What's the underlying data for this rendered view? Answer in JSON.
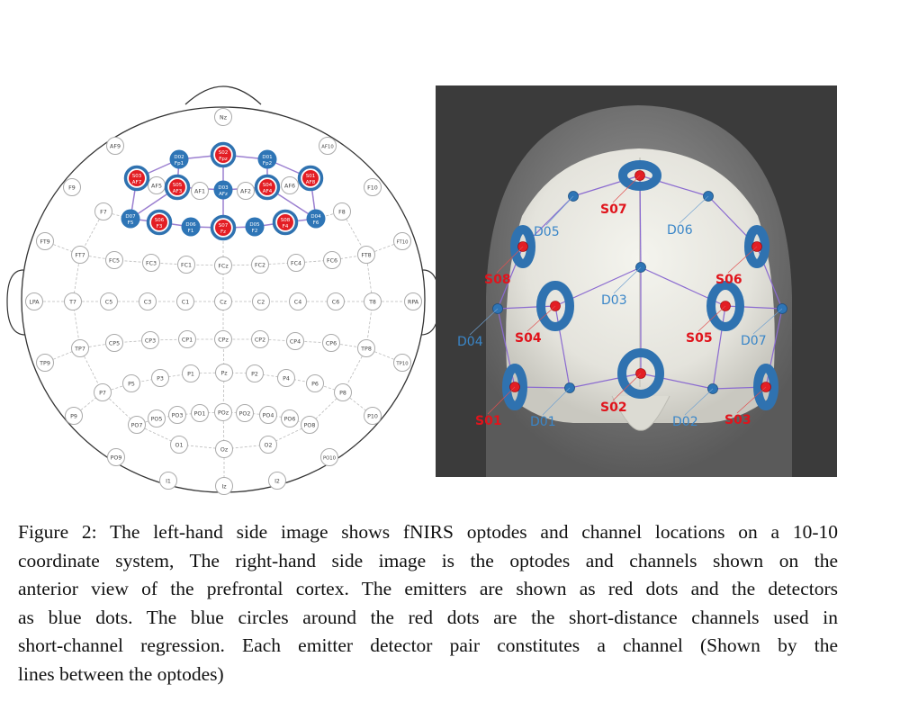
{
  "figure": {
    "left_panel": {
      "electrodes": [
        "Nz",
        "AF9",
        "AF10",
        "AF5",
        "AF1",
        "AF2",
        "AF6",
        "F9",
        "F10",
        "F7",
        "F8",
        "FT9",
        "FT10",
        "FT7",
        "FC5",
        "FC3",
        "FC1",
        "FCz",
        "FC2",
        "FC4",
        "FC6",
        "FT8",
        "LPA",
        "T7",
        "C5",
        "C3",
        "C1",
        "Cz",
        "C2",
        "C4",
        "C6",
        "T8",
        "RPA",
        "TP7",
        "CP5",
        "CP3",
        "CP1",
        "CPz",
        "CP2",
        "CP4",
        "CP6",
        "TP8",
        "TP9",
        "TP10",
        "P7",
        "P5",
        "P3",
        "P1",
        "Pz",
        "P2",
        "P4",
        "P6",
        "P8",
        "P9",
        "P10",
        "PO7",
        "PO5",
        "PO3",
        "PO1",
        "POz",
        "PO2",
        "PO4",
        "PO6",
        "PO8",
        "O1",
        "Oz",
        "O2",
        "PO9",
        "PO10",
        "I1",
        "Iz",
        "I2"
      ],
      "emitters": [
        {
          "id": "S01",
          "site": "AF8"
        },
        {
          "id": "S02",
          "site": "Fpz"
        },
        {
          "id": "S03",
          "site": "AF7"
        },
        {
          "id": "S04",
          "site": "AF4"
        },
        {
          "id": "S05",
          "site": "AF3"
        },
        {
          "id": "S06",
          "site": "F3"
        },
        {
          "id": "S07",
          "site": "Fz"
        },
        {
          "id": "S08",
          "site": "F4"
        }
      ],
      "detectors": [
        {
          "id": "D01",
          "site": "Fp2"
        },
        {
          "id": "D02",
          "site": "Fp1"
        },
        {
          "id": "D03",
          "site": "AFz"
        },
        {
          "id": "D04",
          "site": "F6"
        },
        {
          "id": "D05",
          "site": "F2"
        },
        {
          "id": "D06",
          "site": "F1"
        },
        {
          "id": "D07",
          "site": "F5"
        }
      ],
      "channels": [
        [
          "S02",
          "D02"
        ],
        [
          "S02",
          "D01"
        ],
        [
          "S02",
          "D03"
        ],
        [
          "S03",
          "D02"
        ],
        [
          "S01",
          "D01"
        ],
        [
          "S03",
          "D07"
        ],
        [
          "S05",
          "D02"
        ],
        [
          "S05",
          "D03"
        ],
        [
          "S05",
          "D07"
        ],
        [
          "S04",
          "D01"
        ],
        [
          "S04",
          "D03"
        ],
        [
          "S04",
          "D04"
        ],
        [
          "S01",
          "D04"
        ],
        [
          "S06",
          "D07"
        ],
        [
          "S06",
          "D06"
        ],
        [
          "S07",
          "D06"
        ],
        [
          "S07",
          "D05"
        ],
        [
          "S07",
          "D03"
        ],
        [
          "S08",
          "D05"
        ],
        [
          "S08",
          "D04"
        ]
      ]
    },
    "right_panel": {
      "emitter_labels": [
        "S01",
        "S02",
        "S03",
        "S04",
        "S05",
        "S06",
        "S07",
        "S08"
      ],
      "detector_labels": [
        "D01",
        "D02",
        "D03",
        "D04",
        "D05",
        "D06",
        "D07"
      ]
    },
    "colors": {
      "emitter": "#e31e24",
      "detector": "#2e75b6",
      "ring": "#2f72b0",
      "channel": "#9b7fd0"
    }
  },
  "caption": {
    "lines": [
      "Figure 2: The left-hand side image shows fNIRS optodes and channel locations on a 10-10",
      "coordinate system, The right-hand side image is the optodes and channels shown on the",
      "anterior view of the prefrontal cortex. The emitters are shown as red dots and the detectors",
      "as blue dots.  The blue circles around the red dots are the short-distance channels used in",
      "short-channel regression.  Each emitter detector pair constitutes a channel (Shown by the",
      "lines between the optodes)"
    ]
  }
}
